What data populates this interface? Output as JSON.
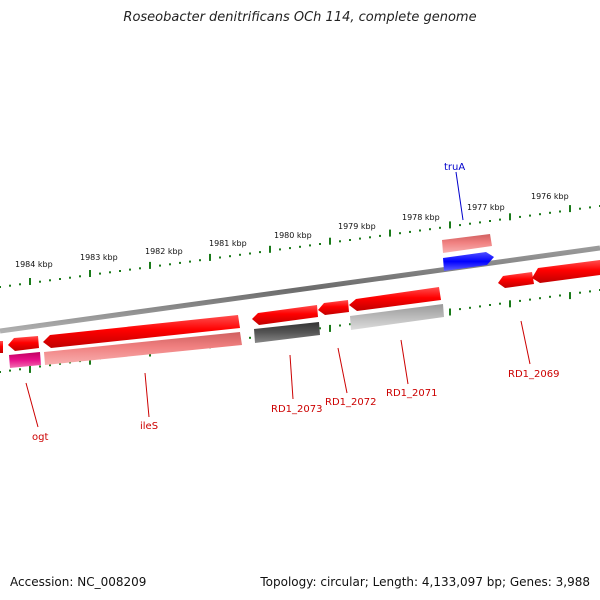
{
  "title": "Roseobacter denitrificans OCh 114, complete genome",
  "footer": {
    "accession": "Accession: NC_008209",
    "summary": "Topology: circular; Length: 4,133,097 bp; Genes: 3,988"
  },
  "scale": {
    "ticks": [
      "1976 kbp",
      "1977 kbp",
      "1978 kbp",
      "1979 kbp",
      "1980 kbp",
      "1981 kbp",
      "1982 kbp",
      "1983 kbp",
      "1984 kbp"
    ]
  },
  "colors": {
    "forward_gene": "#ff0000",
    "reverse_pink": "#f08080",
    "blue_gene": "#1010ff",
    "magenta_gene": "#e0107f",
    "dark_gray_gene": "#555555",
    "light_gray_gene": "#bbbbbb",
    "tick_green": "#1a7a1a",
    "label_red": "#cc0000",
    "label_blue": "#0000cc"
  },
  "gene_labels": [
    {
      "id": "truA",
      "text": "truA",
      "color": "#0000cc"
    },
    {
      "id": "ogt",
      "text": "ogt",
      "color": "#cc0000"
    },
    {
      "id": "ileS",
      "text": "ileS",
      "color": "#cc0000"
    },
    {
      "id": "RD1_2073",
      "text": "RD1_2073",
      "color": "#cc0000"
    },
    {
      "id": "RD1_2072",
      "text": "RD1_2072",
      "color": "#cc0000"
    },
    {
      "id": "RD1_2071",
      "text": "RD1_2071",
      "color": "#cc0000"
    },
    {
      "id": "RD1_2069",
      "text": "RD1_2069",
      "color": "#cc0000"
    }
  ]
}
